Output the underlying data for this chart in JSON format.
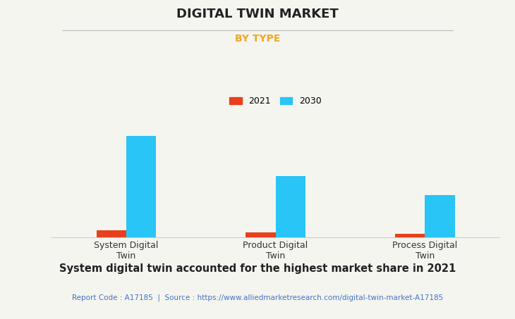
{
  "title": "DIGITAL TWIN MARKET",
  "subtitle": "BY TYPE",
  "categories": [
    "System Digital\nTwin",
    "Product Digital\nTwin",
    "Process Digital\nTwin"
  ],
  "series": {
    "2021": [
      3.5,
      2.5,
      1.8
    ],
    "2030": [
      48,
      29,
      20
    ]
  },
  "bar_colors": {
    "2021": "#e8401c",
    "2030": "#29c5f6"
  },
  "background_color": "#f5f5f0",
  "plot_background_color": "#f5f5f0",
  "grid_color": "#cccccc",
  "title_fontsize": 13,
  "subtitle_fontsize": 10,
  "subtitle_color": "#f5a623",
  "footer_text": "System digital twin accounted for the highest market share in 2021",
  "footer_fontsize": 10.5,
  "report_text": "Report Code : A17185  |  Source : https://www.alliedmarketresearch.com/digital-twin-market-A17185",
  "report_color": "#4472c4",
  "report_fontsize": 7.5,
  "bar_width": 0.2,
  "ylim": [
    0,
    55
  ],
  "title_color": "#222222",
  "tick_fontsize": 9,
  "legend_fontsize": 9
}
